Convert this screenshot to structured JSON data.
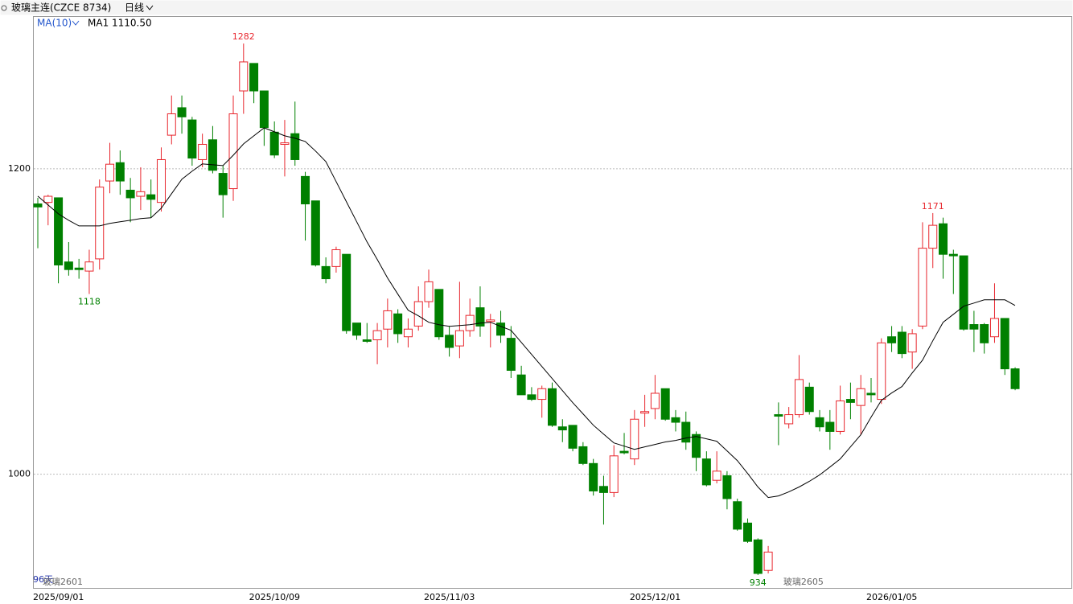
{
  "chart_data": {
    "type": "candlestick",
    "title": "玻璃主连(CZCE 8734)",
    "period": "日线",
    "indicator": "MA(10)",
    "indicator_value": "MA1 1110.50",
    "day_count": "96天",
    "contracts": [
      {
        "name": "玻璃2601",
        "at": 0
      },
      {
        "name": "玻璃2605",
        "at": 72
      }
    ],
    "categories": [
      "2025/09/01",
      null,
      null,
      null,
      null,
      null,
      null,
      null,
      null,
      null,
      null,
      null,
      null,
      null,
      null,
      null,
      null,
      null,
      null,
      null,
      null,
      "2025/10/09",
      null,
      null,
      null,
      null,
      null,
      null,
      null,
      null,
      null,
      null,
      null,
      null,
      null,
      null,
      null,
      null,
      "2025/11/03",
      null,
      null,
      null,
      null,
      null,
      null,
      null,
      null,
      null,
      null,
      null,
      null,
      null,
      null,
      null,
      null,
      null,
      null,
      null,
      "2025/12/01",
      null,
      null,
      null,
      null,
      null,
      null,
      null,
      null,
      null,
      null,
      null,
      null,
      null,
      null,
      null,
      null,
      null,
      null,
      null,
      null,
      null,
      null,
      "2026/01/05",
      null,
      null,
      null,
      null,
      null,
      null,
      null,
      null,
      null,
      null,
      null,
      null,
      null,
      null
    ],
    "open": [
      1177,
      1178,
      1181,
      1139,
      1135,
      1133,
      1141,
      1192,
      1204,
      1186,
      1182,
      1183,
      1178,
      1222,
      1240,
      1232,
      1206,
      1219,
      1197,
      1187,
      1251,
      1269,
      1251,
      1224,
      1216,
      1223,
      1195,
      1179,
      1136,
      1136,
      1144,
      1099,
      1088,
      1088,
      1095,
      1105,
      1090,
      1097,
      1113,
      1121,
      1091,
      1084,
      1094,
      1109,
      1100,
      1099,
      1089,
      1065,
      1052,
      1049,
      1056,
      1031,
      1032,
      1018,
      1007,
      992,
      988,
      1015,
      1010,
      1040,
      1043,
      1056,
      1037,
      1034,
      1026,
      1010,
      996,
      999,
      982,
      968,
      957,
      937,
      1039,
      1033,
      1039,
      1057,
      1037,
      1034,
      1028,
      1049,
      1045,
      1053,
      1049,
      1090,
      1093,
      1080,
      1097,
      1148,
      1164,
      1144,
      1143,
      1098,
      1098,
      1090,
      1102,
      1069
    ],
    "high": [
      1181,
      1183,
      1181,
      1152,
      1141,
      1147,
      1193,
      1217,
      1212,
      1194,
      1201,
      1193,
      1214,
      1248,
      1248,
      1234,
      1223,
      1228,
      1202,
      1248,
      1282,
      1269,
      1251,
      1231,
      1232,
      1244,
      1198,
      1179,
      1142,
      1149,
      1144,
      1099,
      1099,
      1099,
      1115,
      1108,
      1102,
      1123,
      1134,
      1121,
      1097,
      1126,
      1115,
      1123,
      1105,
      1107,
      1097,
      1071,
      1057,
      1058,
      1060,
      1036,
      1032,
      1021,
      1010,
      999,
      1019,
      1027,
      1042,
      1052,
      1065,
      1056,
      1042,
      1041,
      1028,
      1015,
      1015,
      1002,
      984,
      971,
      958,
      953,
      1047,
      1044,
      1078,
      1060,
      1042,
      1042,
      1058,
      1060,
      1065,
      1063,
      1089,
      1097,
      1097,
      1095,
      1165,
      1171,
      1168,
      1147,
      1143,
      1107,
      1099,
      1125,
      1102,
      1070
    ],
    "low": [
      1148,
      1163,
      1125,
      1130,
      1128,
      1118,
      1134,
      1184,
      1183,
      1165,
      1173,
      1168,
      1172,
      1216,
      1223,
      1202,
      1201,
      1197,
      1168,
      1179,
      1236,
      1243,
      1215,
      1207,
      1195,
      1202,
      1153,
      1136,
      1125,
      1132,
      1092,
      1088,
      1086,
      1072,
      1083,
      1086,
      1083,
      1094,
      1109,
      1088,
      1077,
      1076,
      1090,
      1090,
      1083,
      1086,
      1063,
      1052,
      1048,
      1037,
      1031,
      1021,
      1015,
      1006,
      986,
      967,
      985,
      1013,
      1006,
      1031,
      1036,
      1035,
      1028,
      1016,
      1002,
      992,
      994,
      977,
      963,
      955,
      934,
      935,
      1019,
      1030,
      1037,
      1039,
      1028,
      1016,
      1026,
      1036,
      1026,
      1047,
      1046,
      1080,
      1076,
      1069,
      1095,
      1135,
      1128,
      1118,
      1094,
      1080,
      1079,
      1086,
      1065,
      1055
    ],
    "close": [
      1175,
      1182,
      1137,
      1134,
      1134,
      1139,
      1188,
      1203,
      1192,
      1181,
      1185,
      1180,
      1206,
      1236,
      1234,
      1207,
      1216,
      1199,
      1183,
      1236,
      1270,
      1251,
      1227,
      1209,
      1217,
      1206,
      1177,
      1137,
      1128,
      1147,
      1094,
      1091,
      1087,
      1094,
      1107,
      1092,
      1095,
      1113,
      1126,
      1090,
      1083,
      1094,
      1104,
      1097,
      1101,
      1091,
      1068,
      1052,
      1049,
      1056,
      1032,
      1029,
      1017,
      1007,
      989,
      988,
      1012,
      1014,
      1036,
      1041,
      1053,
      1036,
      1034,
      1021,
      1011,
      993,
      1002,
      984,
      964,
      956,
      935,
      949,
      1038,
      1039,
      1062,
      1041,
      1031,
      1028,
      1048,
      1047,
      1056,
      1052,
      1086,
      1086,
      1079,
      1092,
      1148,
      1163,
      1144,
      1143,
      1095,
      1095,
      1086,
      1102,
      1069,
      1056
    ],
    "up_color": "#e8262d",
    "down_color": "#008000",
    "ma": {
      "color": "#000000",
      "values": [
        1182.1,
        1176.3,
        1170.5,
        1166.3,
        1162.6,
        1162.6,
        1162.6,
        1164.2,
        1165.3,
        1166.3,
        1167.4,
        1167.9,
        1174.2,
        1183.7,
        1193.2,
        1198.4,
        1203.2,
        1202.6,
        1202.1,
        1208.9,
        1216.3,
        1221.6,
        1226.8,
        1224.2,
        1221.6,
        1220,
        1217.9,
        1211.6,
        1204.7,
        1191.6,
        1178.4,
        1165.3,
        1152.1,
        1140.5,
        1128.4,
        1117.9,
        1107.4,
        1103.7,
        1099.5,
        1097.9,
        1096.8,
        1097.4,
        1097.9,
        1098.9,
        1099.5,
        1096.8,
        1094.2,
        1086.3,
        1078.4,
        1070.5,
        1062.6,
        1054.7,
        1046.8,
        1039.5,
        1032.1,
        1026.3,
        1020.5,
        1018.4,
        1016.3,
        1017.9,
        1019.5,
        1021.1,
        1022.1,
        1023.7,
        1024.7,
        1023.2,
        1021.6,
        1015.3,
        1008.9,
        1000.5,
        991.6,
        984.7,
        985.8,
        988.4,
        991.6,
        995.3,
        999.5,
        1004.7,
        1010,
        1017.9,
        1025.8,
        1037.4,
        1048.4,
        1053.2,
        1057.4,
        1066.3,
        1074.7,
        1087.4,
        1099.5,
        1104.7,
        1110,
        1112.1,
        1114.2,
        1114.2,
        1114.2,
        1110.5
      ]
    },
    "annotations": [
      {
        "text": "1282",
        "at": 20,
        "side": "high",
        "color": "#e8262d"
      },
      {
        "text": "1118",
        "at": 5,
        "side": "low",
        "color": "#008000"
      },
      {
        "text": "1171",
        "at": 87,
        "side": "high",
        "color": "#e8262d"
      },
      {
        "text": "934",
        "at": 70,
        "side": "low",
        "color": "#008000"
      }
    ],
    "ylim": [
      925,
      1300
    ],
    "yticks": [
      1000,
      1200
    ],
    "grid": true
  }
}
